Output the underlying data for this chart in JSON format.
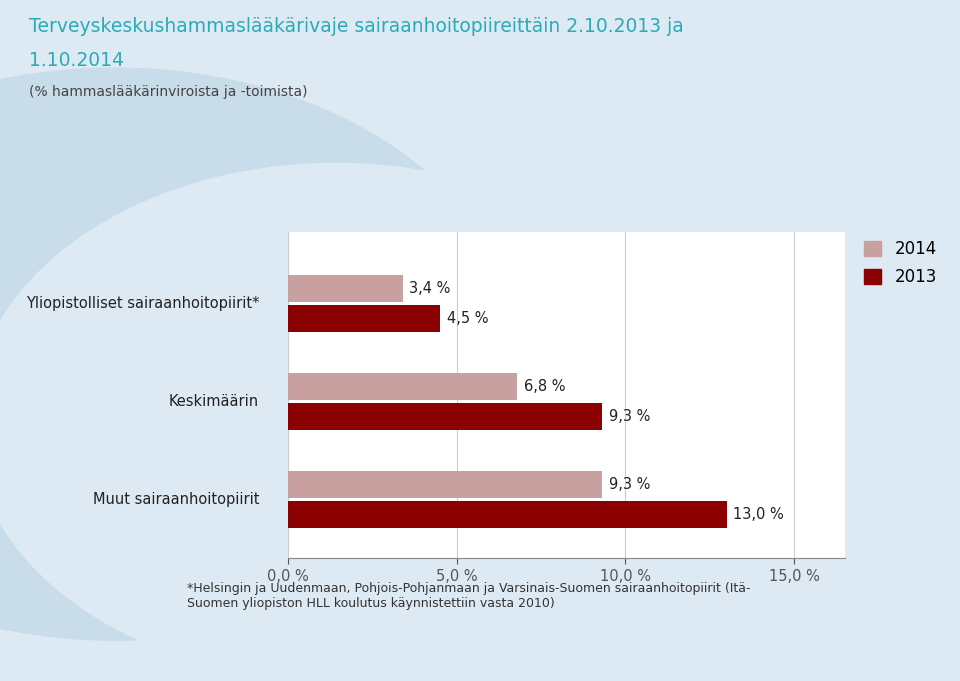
{
  "title_line1": "Terveyskeskushammaslääkärivaje sairaanhoitopiireittäin 2.10.2013 ja",
  "title_line2": "1.10.2014",
  "subtitle": "(% hammaslääkärinviroista ja -toimista)",
  "title_color": "#2aabb8",
  "subtitle_color": "#444444",
  "categories": [
    "Yliopistolliset sairaanhoitopiirit*",
    "Keskimäärin",
    "Muut sairaanhoitopiirit"
  ],
  "values_2014": [
    3.4,
    6.8,
    9.3
  ],
  "values_2013": [
    4.5,
    9.3,
    13.0
  ],
  "labels_2014": [
    "3,4 %",
    "6,8 %",
    "9,3 %"
  ],
  "labels_2013": [
    "4,5 %",
    "9,3 %",
    "13,0 %"
  ],
  "color_2014": "#c9a0a0",
  "color_2013": "#8b0000",
  "legend_2014": "2014",
  "legend_2013": "2013",
  "xlim": [
    0,
    16.5
  ],
  "xticks": [
    0,
    5,
    10,
    15
  ],
  "xticklabels": [
    "0,0 %",
    "5,0 %",
    "10,0 %",
    "15,0 %"
  ],
  "background_color": "#ddeaf3",
  "plot_bg_color": "#ffffff",
  "footnote": "*Helsingin ja Uudenmaan, Pohjois-Pohjanmaan ja Varsinais-Suomen sairaanhoitopiirit (Itä-\nSuomen yliopiston HLL koulutus käynnistettiin vasta 2010)",
  "bar_height": 0.42,
  "bar_gap": 0.04,
  "group_centers": [
    4.5,
    3.0,
    1.5
  ],
  "ylim": [
    0.6,
    5.6
  ]
}
